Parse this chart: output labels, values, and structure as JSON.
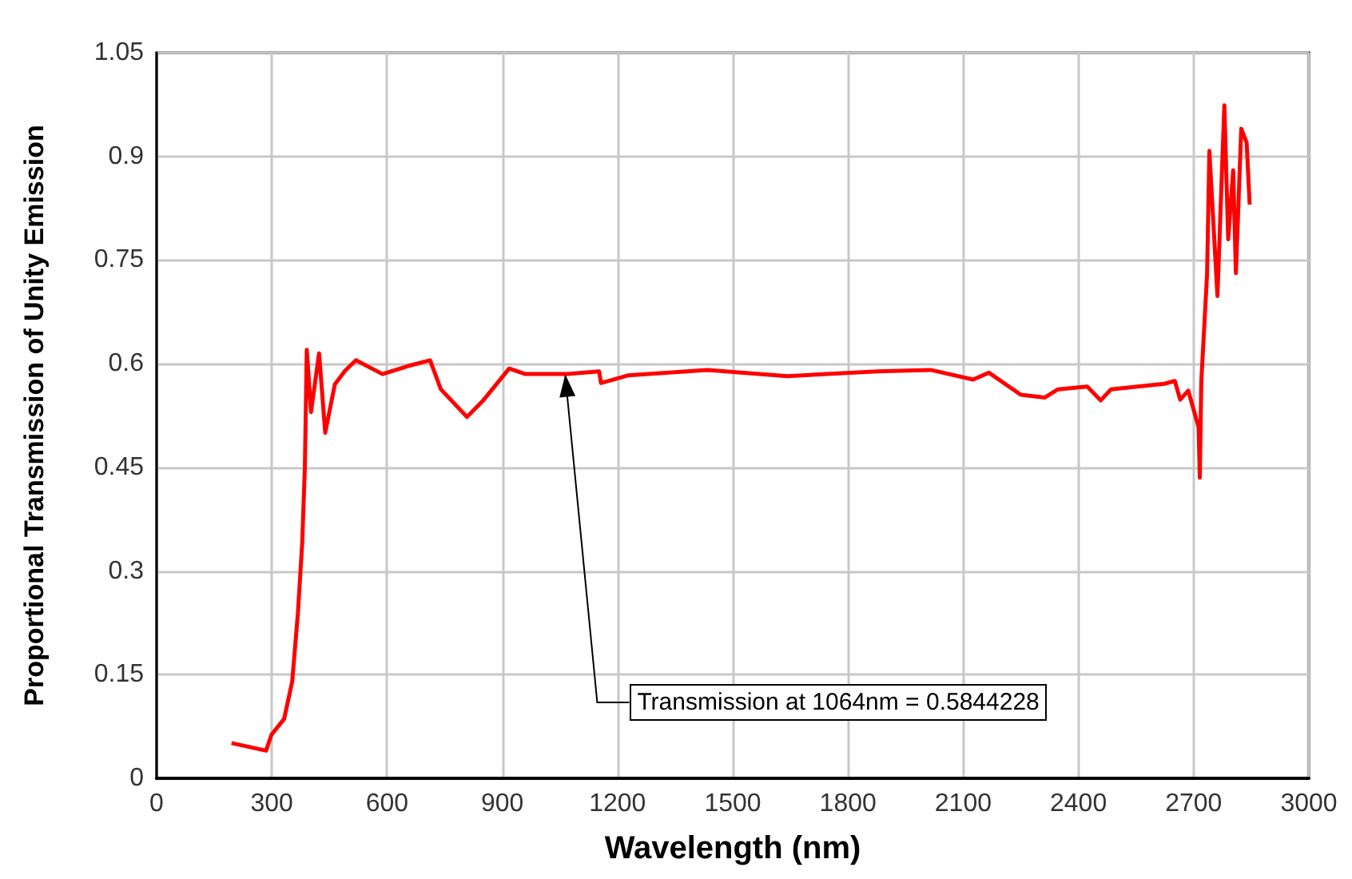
{
  "chart_data": {
    "type": "line",
    "xlabel": "Wavelength (nm)",
    "ylabel": "Proportional Transmission of Unity Emission",
    "x": [
      195,
      285,
      299,
      332,
      353,
      368,
      379,
      386,
      391,
      402,
      423,
      439,
      464,
      491,
      519,
      588,
      657,
      712,
      740,
      808,
      849,
      918,
      960,
      1070,
      1152,
      1157,
      1227,
      1434,
      1642,
      1877,
      2015,
      2126,
      2167,
      2250,
      2312,
      2347,
      2423,
      2458,
      2485,
      2624,
      2651,
      2665,
      2686,
      2713,
      2716,
      2720,
      2735,
      2741,
      2762,
      2780,
      2790,
      2803,
      2810,
      2824,
      2838,
      2846
    ],
    "series": [
      {
        "color": "#ff0000",
        "values": [
          0.051,
          0.04,
          0.063,
          0.086,
          0.14,
          0.24,
          0.34,
          0.45,
          0.62,
          0.53,
          0.615,
          0.5,
          0.57,
          0.59,
          0.605,
          0.585,
          0.597,
          0.605,
          0.563,
          0.523,
          0.546,
          0.593,
          0.585,
          0.585,
          0.589,
          0.572,
          0.583,
          0.591,
          0.582,
          0.589,
          0.591,
          0.577,
          0.587,
          0.555,
          0.551,
          0.563,
          0.567,
          0.547,
          0.563,
          0.571,
          0.575,
          0.548,
          0.561,
          0.508,
          0.435,
          0.574,
          0.73,
          0.908,
          0.698,
          0.974,
          0.78,
          0.88,
          0.731,
          0.94,
          0.92,
          0.83
        ]
      }
    ],
    "xlim": [
      0,
      3000
    ],
    "xticks": [
      0,
      300,
      600,
      900,
      1200,
      1500,
      1800,
      2100,
      2400,
      2700,
      3000
    ],
    "ylim": [
      0,
      1.05
    ],
    "yticks": [
      0,
      0.15,
      0.3,
      0.45,
      0.6,
      0.75,
      0.9,
      1.05
    ],
    "grid": true,
    "marker": "none",
    "line_style": "solid",
    "annotations": [
      {
        "text": "Transmission at 1064nm = 0.5844228",
        "x": 1064,
        "y": 0.5844228
      }
    ]
  }
}
